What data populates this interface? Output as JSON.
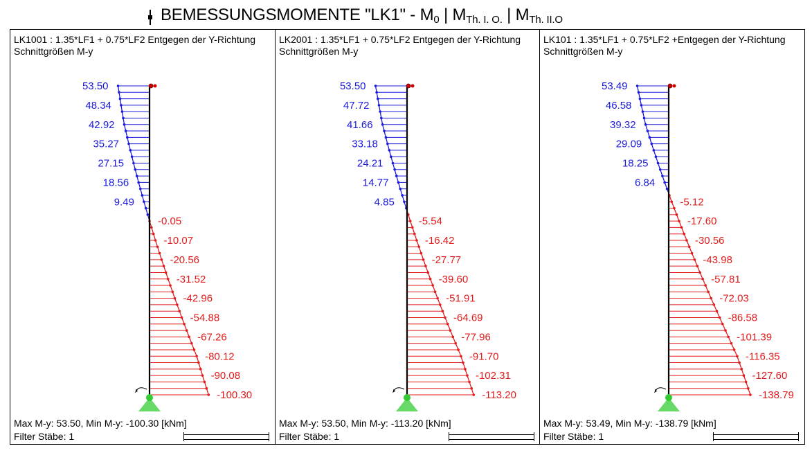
{
  "title": {
    "main": "BEMESSUNGSMOMENTE \"LK1\" - M",
    "sub0": "0",
    "sep1": " |   M",
    "sub1": "Th. I. O.",
    "sep2": " | M",
    "sub2": "Th. II.O"
  },
  "colors": {
    "positive": "#1a1adb",
    "negative": "#e01b1b",
    "member": "#000000",
    "support": "#33cc33",
    "hinge": "#cc0000"
  },
  "panels": [
    {
      "header": "LK1001 : 1.35*LF1 + 0.75*LF2 Entgegen der Y-Richtung",
      "subheader": "Schnittgrößen M-y",
      "summary": "Max M-y: 53.50, Min M-y: -100.30 [kNm]",
      "filter": "Filter Stäbe: 1",
      "chart_data": {
        "type": "moment-diagram",
        "unit": "kNm",
        "positive_labels": [
          "53.50",
          "48.34",
          "42.92",
          "35.27",
          "27.15",
          "18.56",
          "9.49"
        ],
        "negative_labels": [
          "-0.05",
          "-10.07",
          "-20.56",
          "-31.52",
          "-42.96",
          "-54.88",
          "-67.26",
          "-80.12",
          "-90.08",
          "-100.30"
        ],
        "values": [
          53.5,
          48.34,
          42.92,
          35.27,
          27.15,
          18.56,
          9.49,
          -0.05,
          -10.07,
          -20.56,
          -31.52,
          -42.96,
          -54.88,
          -67.26,
          -80.12,
          -90.08,
          -100.3
        ]
      }
    },
    {
      "header": "LK2001 : 1.35*LF1 + 0.75*LF2 Entgegen der Y-Richtung",
      "subheader": "Schnittgrößen M-y",
      "summary": "Max M-y: 53.50, Min M-y: -113.20 [kNm]",
      "filter": "Filter Stäbe: 1",
      "chart_data": {
        "type": "moment-diagram",
        "unit": "kNm",
        "positive_labels": [
          "53.50",
          "47.72",
          "41.66",
          "33.18",
          "24.21",
          "14.77",
          "4.85"
        ],
        "negative_labels": [
          "-5.54",
          "-16.42",
          "-27.77",
          "-39.60",
          "-51.91",
          "-64.69",
          "-77.96",
          "-91.70",
          "-102.31",
          "-113.20"
        ],
        "values": [
          53.5,
          47.72,
          41.66,
          33.18,
          24.21,
          14.77,
          4.85,
          -5.54,
          -16.42,
          -27.77,
          -39.6,
          -51.91,
          -64.69,
          -77.96,
          -91.7,
          -102.31,
          -113.2
        ]
      }
    },
    {
      "header": "LK101 : 1.35*LF1 + 0.75*LF2 +Entgegen der Y-Richtung",
      "subheader": "Schnittgrößen M-y",
      "summary": "Max M-y: 53.49, Min M-y: -138.79 [kNm]",
      "filter": "Filter Stäbe: 1",
      "chart_data": {
        "type": "moment-diagram",
        "unit": "kNm",
        "positive_labels": [
          "53.49",
          "46.58",
          "39.32",
          "29.09",
          "18.25",
          "6.84"
        ],
        "negative_labels": [
          "-5.12",
          "-17.60",
          "-30.56",
          "-43.98",
          "-57.81",
          "-72.03",
          "-86.58",
          "-101.39",
          "-116.35",
          "-127.60",
          "-138.79"
        ],
        "values": [
          53.49,
          46.58,
          39.32,
          29.09,
          18.25,
          6.84,
          -5.12,
          -17.6,
          -30.56,
          -43.98,
          -57.81,
          -72.03,
          -86.58,
          -101.39,
          -116.35,
          -127.6,
          -138.79
        ]
      }
    }
  ]
}
